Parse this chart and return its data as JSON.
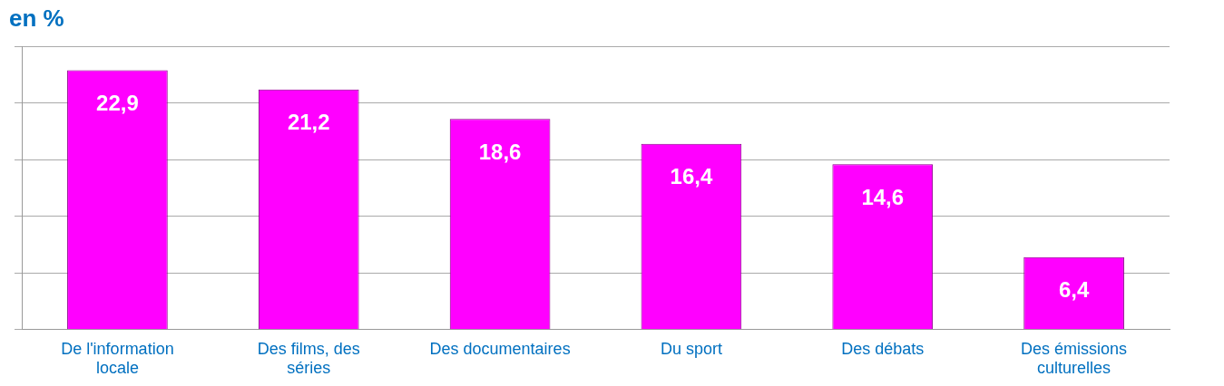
{
  "chart_data": {
    "type": "bar",
    "title": "en %",
    "categories": [
      "De l'information locale",
      "Des films, des séries",
      "Des documentaires",
      "Du sport",
      "Des débats",
      "Des émissions culturelles"
    ],
    "values": [
      22.9,
      21.2,
      18.6,
      16.4,
      14.6,
      6.4
    ],
    "value_labels": [
      "22,9",
      "21,2",
      "18,6",
      "16,4",
      "14,6",
      "6,4"
    ],
    "color": "#ff00ff",
    "ylim": [
      0,
      25
    ],
    "yticks": [
      {
        "value": 0,
        "label": null
      },
      {
        "value": 5,
        "label": null
      },
      {
        "value": 10,
        "label": null
      },
      {
        "value": 15,
        "label": null
      },
      {
        "value": 20,
        "label": null
      },
      {
        "value": 25,
        "label": null
      }
    ],
    "grid": "y",
    "legend": false
  }
}
